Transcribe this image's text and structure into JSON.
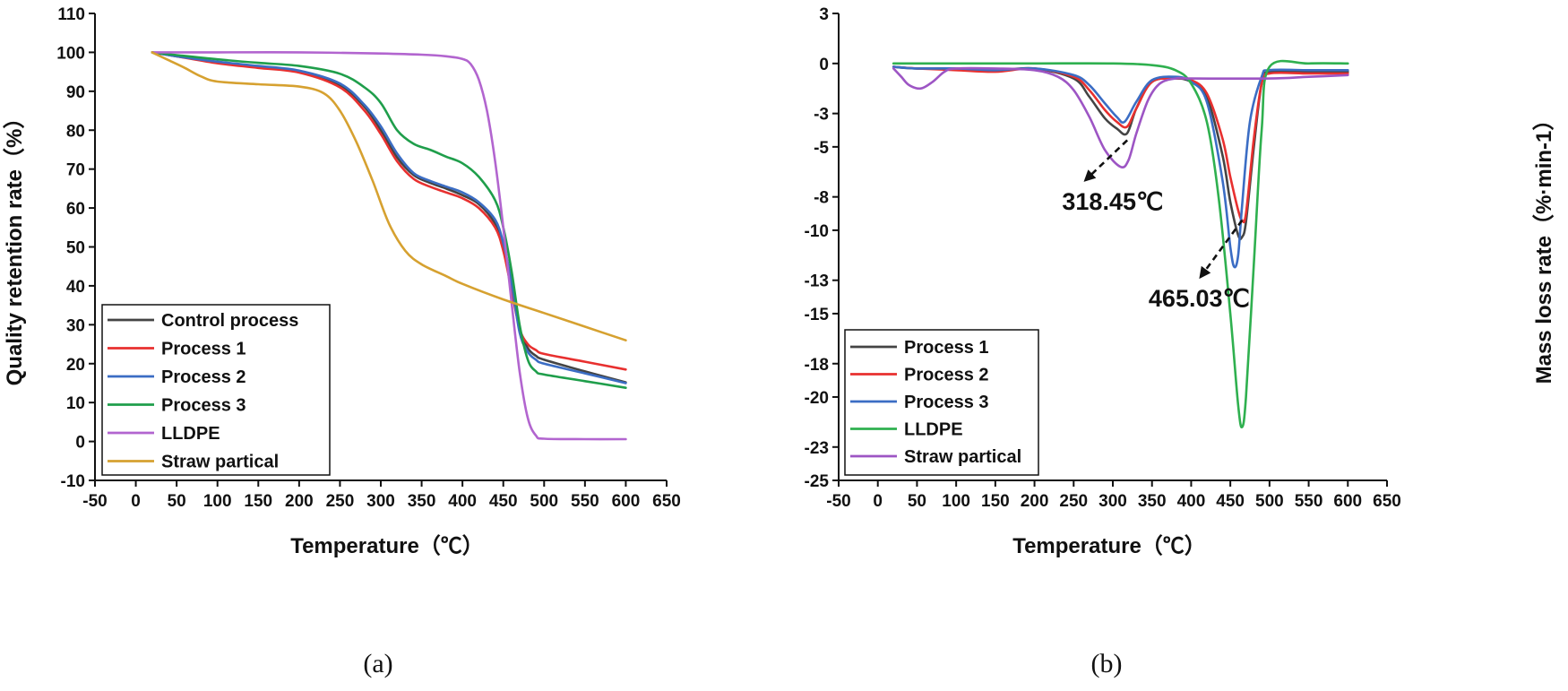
{
  "chart_data": [
    {
      "type": "line",
      "panel_label": "(a)",
      "xlabel": "Temperature（℃）",
      "ylabel": "Quality retention rate（%）",
      "xlim": [
        -50,
        650
      ],
      "ylim": [
        -10,
        110
      ],
      "xticks": [
        -50,
        0,
        50,
        100,
        150,
        200,
        250,
        300,
        350,
        400,
        450,
        500,
        550,
        600,
        650
      ],
      "yticks": [
        -10,
        0,
        10,
        20,
        30,
        40,
        50,
        60,
        70,
        80,
        90,
        100,
        110
      ],
      "grid": false,
      "legend_position": "bottom-left",
      "series": [
        {
          "name": "Control process",
          "color": "#444444",
          "x": [
            20,
            50,
            100,
            150,
            200,
            250,
            280,
            300,
            320,
            340,
            360,
            380,
            400,
            420,
            440,
            450,
            460,
            470,
            480,
            490,
            500,
            550,
            600
          ],
          "y": [
            100,
            99,
            97.5,
            96.3,
            95.1,
            91.5,
            86,
            80,
            73,
            68.5,
            66.5,
            65,
            63.3,
            61,
            56,
            50,
            40,
            29,
            24,
            22,
            21,
            18,
            15.2
          ]
        },
        {
          "name": "Process 1",
          "color": "#e8302f",
          "x": [
            20,
            50,
            100,
            150,
            200,
            250,
            280,
            300,
            320,
            340,
            360,
            380,
            400,
            420,
            440,
            450,
            460,
            470,
            480,
            490,
            500,
            550,
            600
          ],
          "y": [
            100,
            99,
            97.2,
            96,
            94.8,
            91,
            85,
            79,
            72,
            67.5,
            65.5,
            64,
            62.5,
            60,
            55,
            49,
            39,
            29,
            25,
            23.5,
            22.5,
            20.5,
            18.5
          ]
        },
        {
          "name": "Process 2",
          "color": "#3b6dc4",
          "x": [
            20,
            50,
            100,
            150,
            200,
            250,
            280,
            300,
            320,
            340,
            360,
            380,
            400,
            420,
            440,
            450,
            460,
            470,
            480,
            490,
            500,
            550,
            600
          ],
          "y": [
            100,
            99,
            97.6,
            96.5,
            95.3,
            92,
            86.5,
            81,
            74,
            69,
            67,
            65.5,
            64,
            61.5,
            57,
            51,
            41,
            28,
            23,
            21,
            20,
            17.5,
            15
          ]
        },
        {
          "name": "Process 3",
          "color": "#1f9e4b",
          "x": [
            20,
            50,
            100,
            150,
            200,
            250,
            280,
            300,
            320,
            340,
            360,
            380,
            400,
            420,
            440,
            450,
            460,
            470,
            480,
            490,
            500,
            550,
            600
          ],
          "y": [
            100,
            99.3,
            98.2,
            97.3,
            96.5,
            94.5,
            91,
            87,
            80,
            76.5,
            75,
            73.2,
            71.5,
            68,
            62,
            55,
            44,
            30,
            21,
            18,
            17.2,
            15.5,
            13.8
          ]
        },
        {
          "name": "LLDPE",
          "color": "#b265cf",
          "x": [
            20,
            100,
            200,
            300,
            350,
            380,
            400,
            410,
            420,
            430,
            440,
            450,
            460,
            470,
            480,
            490,
            500,
            550,
            600
          ],
          "y": [
            100,
            100,
            100,
            99.7,
            99.4,
            99,
            98.3,
            97,
            93,
            85,
            72,
            55,
            36,
            18,
            6,
            1.5,
            0.7,
            0.6,
            0.6
          ]
        },
        {
          "name": "Straw partical",
          "color": "#d6a130",
          "x": [
            20,
            40,
            60,
            80,
            100,
            150,
            200,
            230,
            250,
            270,
            290,
            310,
            330,
            350,
            380,
            400,
            450,
            500,
            550,
            600
          ],
          "y": [
            100,
            98,
            96,
            93.8,
            92.5,
            91.8,
            91.2,
            89.5,
            85,
            77,
            67,
            56,
            49,
            45.5,
            42.5,
            40.5,
            36.5,
            33,
            29.5,
            26
          ]
        }
      ]
    },
    {
      "type": "line",
      "panel_label": "(b)",
      "xlabel": "Temperature（℃）",
      "ylabel": "Mass loss rate（%·min-1）",
      "xlim": [
        -50,
        650
      ],
      "ylim": [
        -25,
        3
      ],
      "xticks": [
        -50,
        0,
        50,
        100,
        150,
        200,
        250,
        300,
        350,
        400,
        450,
        500,
        550,
        600,
        650
      ],
      "yticks": [
        3,
        0,
        -3,
        -5,
        -8,
        -10,
        -13,
        -15,
        -18,
        -20,
        -23,
        -25
      ],
      "grid": false,
      "legend_position": "bottom-left",
      "annotations": [
        {
          "text": "318.45℃",
          "from": [
            318.45,
            -4.6
          ],
          "to": [
            265,
            -7
          ]
        },
        {
          "text": "465.03℃",
          "from": [
            465.03,
            -9.4
          ],
          "to": [
            412,
            -12.8
          ]
        }
      ],
      "series": [
        {
          "name": "Process 1",
          "color": "#444444",
          "x": [
            20,
            50,
            100,
            150,
            200,
            250,
            270,
            290,
            305,
            318,
            330,
            350,
            380,
            400,
            420,
            440,
            450,
            460,
            465,
            470,
            480,
            490,
            500,
            550,
            600
          ],
          "y": [
            -0.2,
            -0.3,
            -0.3,
            -0.4,
            -0.3,
            -0.9,
            -2,
            -3.3,
            -3.9,
            -4.2,
            -2.7,
            -1.1,
            -0.9,
            -1.1,
            -2,
            -5.5,
            -8.3,
            -10.3,
            -10.4,
            -9.5,
            -5,
            -1.2,
            -0.5,
            -0.5,
            -0.5
          ]
        },
        {
          "name": "Process 2",
          "color": "#e8302f",
          "x": [
            20,
            50,
            100,
            150,
            200,
            250,
            270,
            290,
            305,
            318,
            330,
            350,
            380,
            400,
            420,
            440,
            450,
            460,
            465,
            470,
            480,
            490,
            500,
            550,
            600
          ],
          "y": [
            -0.2,
            -0.3,
            -0.4,
            -0.5,
            -0.3,
            -0.8,
            -1.6,
            -2.8,
            -3.5,
            -3.8,
            -2.7,
            -1.1,
            -0.9,
            -1,
            -1.8,
            -4.5,
            -6.8,
            -8.8,
            -9.4,
            -9,
            -4.5,
            -1.2,
            -0.6,
            -0.6,
            -0.6
          ]
        },
        {
          "name": "Process 3",
          "color": "#3b6dc4",
          "x": [
            20,
            50,
            100,
            150,
            200,
            250,
            270,
            290,
            305,
            315,
            330,
            350,
            380,
            400,
            420,
            440,
            450,
            455,
            460,
            465,
            475,
            490,
            500,
            550,
            600
          ],
          "y": [
            -0.2,
            -0.3,
            -0.3,
            -0.4,
            -0.3,
            -0.7,
            -1.3,
            -2.4,
            -3.2,
            -3.5,
            -2.3,
            -1,
            -0.8,
            -1.1,
            -2.3,
            -7,
            -11,
            -12.2,
            -11.5,
            -8.5,
            -3.5,
            -0.8,
            -0.4,
            -0.4,
            -0.4
          ]
        },
        {
          "name": "LLDPE",
          "color": "#2fb04f",
          "x": [
            20,
            100,
            200,
            300,
            350,
            380,
            400,
            420,
            435,
            450,
            460,
            465,
            470,
            480,
            490,
            500,
            550,
            600
          ],
          "y": [
            0,
            0,
            0,
            0,
            -0.1,
            -0.4,
            -1.2,
            -3.5,
            -8,
            -15,
            -20.5,
            -21.8,
            -20,
            -12,
            -4,
            -0.2,
            0,
            0
          ]
        },
        {
          "name": "Straw partical",
          "color": "#9d55c4",
          "x": [
            20,
            30,
            40,
            55,
            70,
            85,
            100,
            150,
            200,
            230,
            250,
            270,
            290,
            310,
            320,
            330,
            345,
            360,
            380,
            400,
            500,
            550,
            600
          ],
          "y": [
            -0.3,
            -0.8,
            -1.3,
            -1.5,
            -1.1,
            -0.5,
            -0.3,
            -0.3,
            -0.4,
            -0.8,
            -1.6,
            -3.2,
            -5.2,
            -6.2,
            -5.8,
            -4.2,
            -2.2,
            -1.2,
            -0.9,
            -0.9,
            -0.9,
            -0.8,
            -0.7
          ]
        }
      ]
    }
  ]
}
